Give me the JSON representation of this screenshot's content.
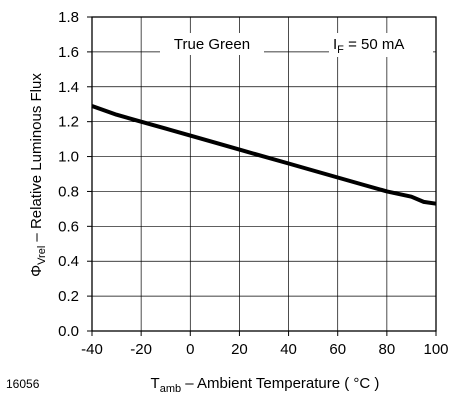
{
  "chart_data": {
    "type": "line",
    "figure_id": "16056",
    "xlabel": {
      "symbol": "T",
      "subscript": "amb",
      "text": " – Ambient Temperature ( °C )"
    },
    "ylabel": {
      "symbol": "Φ",
      "subscript": "Vrel",
      "text": " – Relative Luminous Flux"
    },
    "xlim": [
      -40,
      100
    ],
    "ylim": [
      0.0,
      1.8
    ],
    "x_ticks": [
      -40,
      -20,
      0,
      20,
      40,
      60,
      80,
      100
    ],
    "x_tick_labels": [
      "-40",
      "-20",
      "0",
      "20",
      "40",
      "60",
      "80",
      "100"
    ],
    "y_ticks": [
      0.0,
      0.2,
      0.4,
      0.6,
      0.8,
      1.0,
      1.2,
      1.4,
      1.6,
      1.8
    ],
    "y_tick_labels": [
      "0.0",
      "0.2",
      "0.4",
      "0.6",
      "0.8",
      "1.0",
      "1.2",
      "1.4",
      "1.6",
      "1.8"
    ],
    "grid": true,
    "annotations": {
      "series_label": "True Green",
      "condition": {
        "symbol": "I",
        "subscript": "F",
        "text": " = 50 mA"
      }
    },
    "series": [
      {
        "color": "#000000",
        "x": [
          -40,
          -30,
          -20,
          -10,
          0,
          10,
          20,
          30,
          40,
          50,
          60,
          70,
          80,
          90,
          95,
          100
        ],
        "y": [
          1.29,
          1.24,
          1.2,
          1.16,
          1.12,
          1.08,
          1.04,
          1.0,
          0.96,
          0.92,
          0.88,
          0.84,
          0.8,
          0.77,
          0.74,
          0.73
        ]
      }
    ]
  }
}
